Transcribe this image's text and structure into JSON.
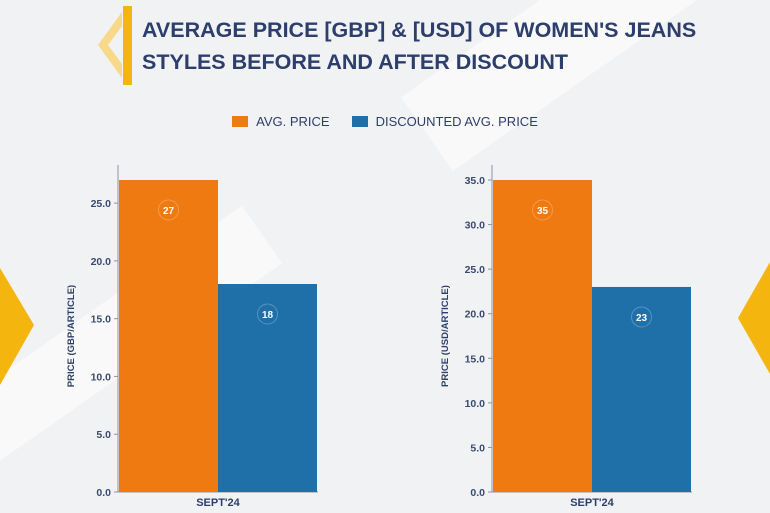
{
  "title": "AVERAGE PRICE [GBP] & [USD] OF WOMEN'S JEANS\nSTYLES BEFORE AND AFTER DISCOUNT",
  "colors": {
    "avg": "#f07a12",
    "discounted": "#1f6fa9",
    "accent": "#f5b50f",
    "title": "#2c3e6b"
  },
  "legend": [
    {
      "label": "AVG. PRICE",
      "color": "#f07a12"
    },
    {
      "label": "DISCOUNTED AVG. PRICE",
      "color": "#1f6fa9"
    }
  ],
  "chart_data": [
    {
      "type": "bar",
      "categories": [
        "SEPT'24"
      ],
      "ylabel": "PRICE (GBP/ARTICLE)",
      "ylim": [
        0,
        27
      ],
      "yticks": [
        "0.0",
        "5.0",
        "10.0",
        "15.0",
        "20.0",
        "25.0"
      ],
      "series": [
        {
          "name": "AVG. PRICE",
          "values": [
            27
          ],
          "labels": [
            "27"
          ]
        },
        {
          "name": "DISCOUNTED AVG. PRICE",
          "values": [
            18
          ],
          "labels": [
            "18"
          ]
        }
      ]
    },
    {
      "type": "bar",
      "categories": [
        "SEPT'24"
      ],
      "ylabel": "PRICE (USD/ARTICLE)",
      "ylim": [
        0,
        35
      ],
      "yticks": [
        "0.0",
        "5.0",
        "10.0",
        "15.0",
        "20.0",
        "25.0",
        "30.0",
        "35.0"
      ],
      "series": [
        {
          "name": "AVG. PRICE",
          "values": [
            35
          ],
          "labels": [
            "35"
          ]
        },
        {
          "name": "DISCOUNTED AVG. PRICE",
          "values": [
            23
          ],
          "labels": [
            "23"
          ]
        }
      ]
    }
  ]
}
